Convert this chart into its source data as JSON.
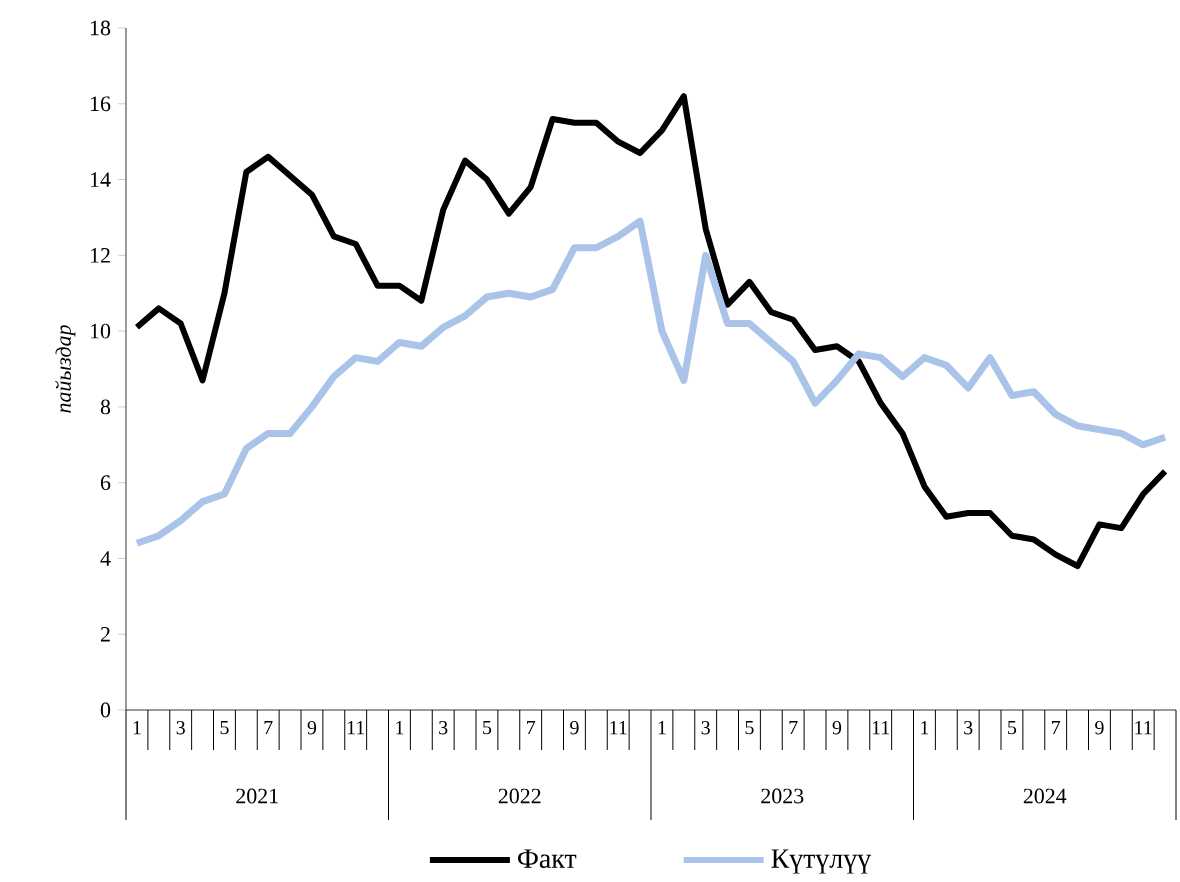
{
  "chart_data": {
    "type": "line",
    "ylabel": "пайыздар",
    "categories": [
      "1",
      null,
      "3",
      null,
      "5",
      null,
      "7",
      null,
      "9",
      null,
      "11",
      null,
      "1",
      null,
      "3",
      null,
      "5",
      null,
      "7",
      null,
      "9",
      null,
      "11",
      null,
      "1",
      null,
      "3",
      null,
      "5",
      null,
      "7",
      null,
      "9",
      null,
      "11",
      null,
      "1",
      null,
      "3",
      null,
      "5",
      null,
      "7",
      null,
      "9",
      null,
      "11",
      null
    ],
    "series": [
      {
        "name": "Факт",
        "color": "#000000",
        "values": [
          10.1,
          10.6,
          10.2,
          8.7,
          11.0,
          14.2,
          14.6,
          14.1,
          13.6,
          12.5,
          12.3,
          11.2,
          11.2,
          10.8,
          13.2,
          14.5,
          14.0,
          13.1,
          13.8,
          15.6,
          15.5,
          15.5,
          15.0,
          14.7,
          15.3,
          16.2,
          12.7,
          10.7,
          11.3,
          10.5,
          10.3,
          9.5,
          9.6,
          9.2,
          8.1,
          7.3,
          5.9,
          5.1,
          5.2,
          5.2,
          4.6,
          4.5,
          4.1,
          3.8,
          4.9,
          4.8,
          5.7,
          6.3
        ]
      },
      {
        "name": "Күтүлүү",
        "color": "#a9c4e8",
        "values": [
          4.4,
          4.6,
          5.0,
          5.5,
          5.7,
          6.9,
          7.3,
          7.3,
          8.0,
          8.8,
          9.3,
          9.2,
          9.7,
          9.6,
          10.1,
          10.4,
          10.9,
          11.0,
          10.9,
          11.1,
          12.2,
          12.2,
          12.5,
          12.9,
          10.0,
          8.7,
          12.0,
          10.2,
          10.2,
          9.7,
          9.2,
          8.1,
          8.7,
          9.4,
          9.3,
          8.8,
          9.3,
          9.1,
          8.5,
          9.3,
          8.3,
          8.4,
          7.8,
          7.5,
          7.4,
          7.3,
          7.0,
          7.2
        ]
      }
    ],
    "ylim": [
      0,
      18
    ],
    "yticks": [
      0,
      2,
      4,
      6,
      8,
      10,
      12,
      14,
      16,
      18
    ],
    "annotations": [
      "2021",
      "2022",
      "2023",
      "2024"
    ],
    "legend": "bottom",
    "line_style": "solid"
  }
}
